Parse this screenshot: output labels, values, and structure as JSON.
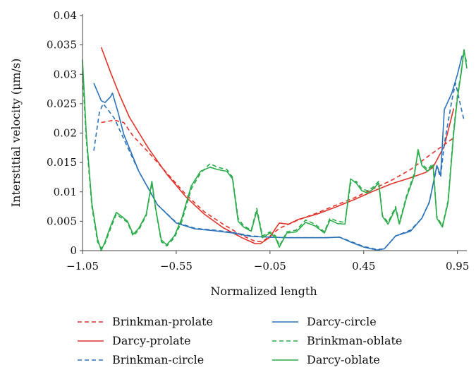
{
  "chart_data": {
    "type": "line",
    "title": "",
    "xlabel": "Normalized length",
    "ylabel": "Interstitial velocity (μm/s)",
    "xlim": [
      -1.05,
      1.0
    ],
    "ylim": [
      0,
      0.04
    ],
    "x_ticks": [
      "−1.05",
      "−0.55",
      "−0.05",
      "0.45",
      "0.95"
    ],
    "x_tick_values": [
      -1.05,
      -0.55,
      -0.05,
      0.45,
      0.95
    ],
    "y_ticks": [
      "0",
      "0.005",
      "0.01",
      "0.015",
      "0.02",
      "0.025",
      "0.03",
      "0.035",
      "0.04"
    ],
    "y_tick_values": [
      0,
      0.005,
      0.01,
      0.015,
      0.02,
      0.025,
      0.03,
      0.035,
      0.04
    ],
    "grid": false,
    "legend_position": "bottom",
    "series": [
      {
        "name": "Brinkman-prolate",
        "color": "#e0332a",
        "dash": true,
        "points": [
          [
            -0.95,
            0.0218
          ],
          [
            -0.88,
            0.0222
          ],
          [
            -0.83,
            0.0218
          ],
          [
            -0.78,
            0.0195
          ],
          [
            -0.7,
            0.0168
          ],
          [
            -0.6,
            0.0132
          ],
          [
            -0.5,
            0.0096
          ],
          [
            -0.4,
            0.0066
          ],
          [
            -0.3,
            0.0045
          ],
          [
            -0.2,
            0.0026
          ],
          [
            -0.13,
            0.0016
          ],
          [
            -0.09,
            0.0015
          ],
          [
            -0.05,
            0.0025
          ],
          [
            0.0,
            0.0038
          ],
          [
            0.1,
            0.0052
          ],
          [
            0.2,
            0.0064
          ],
          [
            0.3,
            0.0077
          ],
          [
            0.4,
            0.009
          ],
          [
            0.5,
            0.0105
          ],
          [
            0.6,
            0.012
          ],
          [
            0.7,
            0.0138
          ],
          [
            0.8,
            0.0162
          ],
          [
            0.87,
            0.0178
          ],
          [
            0.93,
            0.0192
          ]
        ]
      },
      {
        "name": "Darcy-prolate",
        "color": "#e0332a",
        "dash": false,
        "points": [
          [
            -0.95,
            0.0346
          ],
          [
            -0.9,
            0.0303
          ],
          [
            -0.85,
            0.0263
          ],
          [
            -0.8,
            0.0227
          ],
          [
            -0.7,
            0.0175
          ],
          [
            -0.6,
            0.013
          ],
          [
            -0.5,
            0.0092
          ],
          [
            -0.4,
            0.0062
          ],
          [
            -0.3,
            0.0039
          ],
          [
            -0.2,
            0.0022
          ],
          [
            -0.13,
            0.0012
          ],
          [
            -0.1,
            0.0012
          ],
          [
            -0.05,
            0.0023
          ],
          [
            -0.02,
            0.0038
          ],
          [
            0.0,
            0.0047
          ],
          [
            0.05,
            0.0045
          ],
          [
            0.1,
            0.0053
          ],
          [
            0.2,
            0.0062
          ],
          [
            0.3,
            0.0074
          ],
          [
            0.4,
            0.0087
          ],
          [
            0.5,
            0.0101
          ],
          [
            0.6,
            0.0114
          ],
          [
            0.7,
            0.0124
          ],
          [
            0.78,
            0.0133
          ],
          [
            0.82,
            0.0142
          ],
          [
            0.88,
            0.0178
          ],
          [
            0.93,
            0.0242
          ]
        ]
      },
      {
        "name": "Brinkman-circle",
        "color": "#2c72b9",
        "dash": true,
        "points": [
          [
            -0.99,
            0.017
          ],
          [
            -0.96,
            0.0235
          ],
          [
            -0.94,
            0.025
          ],
          [
            -0.91,
            0.0238
          ],
          [
            -0.88,
            0.0225
          ],
          [
            -0.83,
            0.019
          ],
          [
            -0.75,
            0.0135
          ],
          [
            -0.65,
            0.0078
          ],
          [
            -0.55,
            0.0048
          ],
          [
            -0.45,
            0.0038
          ],
          [
            -0.35,
            0.0035
          ],
          [
            -0.25,
            0.0031
          ],
          [
            -0.15,
            0.0025
          ],
          [
            -0.05,
            0.0023
          ],
          [
            0.05,
            0.0022
          ],
          [
            0.15,
            0.0022
          ],
          [
            0.25,
            0.0022
          ],
          [
            0.32,
            0.0023
          ],
          [
            0.37,
            0.0017
          ],
          [
            0.45,
            0.0007
          ],
          [
            0.52,
            0.0002
          ],
          [
            0.56,
            0.0003
          ],
          [
            0.62,
            0.0025
          ],
          [
            0.7,
            0.0035
          ],
          [
            0.76,
            0.0055
          ],
          [
            0.8,
            0.0083
          ],
          [
            0.84,
            0.0142
          ],
          [
            0.86,
            0.0125
          ],
          [
            0.88,
            0.0182
          ],
          [
            0.92,
            0.0255
          ],
          [
            0.94,
            0.0285
          ],
          [
            0.97,
            0.0242
          ],
          [
            0.985,
            0.0222
          ]
        ]
      },
      {
        "name": "Darcy-circle",
        "color": "#2c72b9",
        "dash": false,
        "points": [
          [
            -0.99,
            0.0285
          ],
          [
            -0.95,
            0.0255
          ],
          [
            -0.93,
            0.0252
          ],
          [
            -0.9,
            0.0262
          ],
          [
            -0.89,
            0.0268
          ],
          [
            -0.86,
            0.0235
          ],
          [
            -0.83,
            0.0198
          ],
          [
            -0.75,
            0.0135
          ],
          [
            -0.65,
            0.0078
          ],
          [
            -0.55,
            0.0047
          ],
          [
            -0.45,
            0.0037
          ],
          [
            -0.35,
            0.0034
          ],
          [
            -0.25,
            0.003
          ],
          [
            -0.15,
            0.0024
          ],
          [
            -0.05,
            0.0023
          ],
          [
            0.05,
            0.0022
          ],
          [
            0.15,
            0.0022
          ],
          [
            0.25,
            0.0022
          ],
          [
            0.32,
            0.0023
          ],
          [
            0.37,
            0.0016
          ],
          [
            0.45,
            0.0006
          ],
          [
            0.52,
            0.0001
          ],
          [
            0.56,
            0.0003
          ],
          [
            0.62,
            0.0025
          ],
          [
            0.7,
            0.0033
          ],
          [
            0.76,
            0.0055
          ],
          [
            0.8,
            0.0082
          ],
          [
            0.84,
            0.0145
          ],
          [
            0.86,
            0.0128
          ],
          [
            0.88,
            0.024
          ],
          [
            0.92,
            0.0268
          ],
          [
            0.95,
            0.03
          ],
          [
            0.975,
            0.0332
          ]
        ]
      },
      {
        "name": "Brinkman-oblate",
        "color": "#2bab4a",
        "dash": true,
        "points": [
          [
            -1.05,
            0.0305
          ],
          [
            -1.03,
            0.019
          ],
          [
            -1.0,
            0.0075
          ],
          [
            -0.97,
            0.0015
          ],
          [
            -0.95,
            0.0004
          ],
          [
            -0.93,
            0.0012
          ],
          [
            -0.9,
            0.0038
          ],
          [
            -0.87,
            0.0062
          ],
          [
            -0.84,
            0.0055
          ],
          [
            -0.81,
            0.0048
          ],
          [
            -0.78,
            0.0025
          ],
          [
            -0.75,
            0.0035
          ],
          [
            -0.71,
            0.006
          ],
          [
            -0.68,
            0.0115
          ],
          [
            -0.66,
            0.007
          ],
          [
            -0.63,
            0.0015
          ],
          [
            -0.6,
            0.0008
          ],
          [
            -0.56,
            0.0022
          ],
          [
            -0.52,
            0.005
          ],
          [
            -0.47,
            0.0105
          ],
          [
            -0.42,
            0.0132
          ],
          [
            -0.37,
            0.0148
          ],
          [
            -0.33,
            0.0142
          ],
          [
            -0.28,
            0.0138
          ],
          [
            -0.25,
            0.0125
          ],
          [
            -0.22,
            0.0055
          ],
          [
            -0.19,
            0.0042
          ],
          [
            -0.15,
            0.0035
          ],
          [
            -0.12,
            0.0072
          ],
          [
            -0.09,
            0.0025
          ],
          [
            -0.05,
            0.0032
          ],
          [
            -0.02,
            0.0025
          ],
          [
            0.0,
            0.0008
          ],
          [
            0.04,
            0.0032
          ],
          [
            0.09,
            0.0035
          ],
          [
            0.14,
            0.0052
          ],
          [
            0.19,
            0.0045
          ],
          [
            0.24,
            0.0032
          ],
          [
            0.27,
            0.0055
          ],
          [
            0.31,
            0.005
          ],
          [
            0.35,
            0.0048
          ],
          [
            0.38,
            0.0115
          ],
          [
            0.41,
            0.0118
          ],
          [
            0.44,
            0.0105
          ],
          [
            0.47,
            0.0102
          ],
          [
            0.5,
            0.0108
          ],
          [
            0.53,
            0.0118
          ],
          [
            0.55,
            0.006
          ],
          [
            0.58,
            0.0048
          ],
          [
            0.62,
            0.0075
          ],
          [
            0.64,
            0.0048
          ],
          [
            0.68,
            0.0095
          ],
          [
            0.72,
            0.0132
          ],
          [
            0.74,
            0.0168
          ],
          [
            0.76,
            0.0148
          ],
          [
            0.79,
            0.0138
          ],
          [
            0.82,
            0.0148
          ],
          [
            0.84,
            0.0058
          ],
          [
            0.87,
            0.0042
          ],
          [
            0.9,
            0.0085
          ],
          [
            0.93,
            0.0205
          ],
          [
            0.95,
            0.0265
          ],
          [
            0.97,
            0.0305
          ],
          [
            0.985,
            0.034
          ],
          [
            1.0,
            0.0318
          ]
        ]
      },
      {
        "name": "Darcy-oblate",
        "color": "#2bab4a",
        "dash": false,
        "points": [
          [
            -1.05,
            0.0325
          ],
          [
            -1.03,
            0.02
          ],
          [
            -1.0,
            0.008
          ],
          [
            -0.97,
            0.002
          ],
          [
            -0.95,
            0.0
          ],
          [
            -0.93,
            0.0015
          ],
          [
            -0.9,
            0.0042
          ],
          [
            -0.87,
            0.0065
          ],
          [
            -0.84,
            0.0058
          ],
          [
            -0.81,
            0.005
          ],
          [
            -0.78,
            0.0028
          ],
          [
            -0.75,
            0.0038
          ],
          [
            -0.71,
            0.0062
          ],
          [
            -0.68,
            0.0118
          ],
          [
            -0.66,
            0.0072
          ],
          [
            -0.63,
            0.0018
          ],
          [
            -0.6,
            0.001
          ],
          [
            -0.56,
            0.0025
          ],
          [
            -0.52,
            0.0055
          ],
          [
            -0.47,
            0.011
          ],
          [
            -0.42,
            0.0135
          ],
          [
            -0.37,
            0.0142
          ],
          [
            -0.33,
            0.0138
          ],
          [
            -0.28,
            0.0135
          ],
          [
            -0.25,
            0.0122
          ],
          [
            -0.22,
            0.005
          ],
          [
            -0.19,
            0.004
          ],
          [
            -0.15,
            0.0033
          ],
          [
            -0.12,
            0.0068
          ],
          [
            -0.09,
            0.0022
          ],
          [
            -0.05,
            0.003
          ],
          [
            -0.02,
            0.0022
          ],
          [
            0.0,
            0.0006
          ],
          [
            0.04,
            0.003
          ],
          [
            0.09,
            0.0032
          ],
          [
            0.14,
            0.0048
          ],
          [
            0.19,
            0.0042
          ],
          [
            0.24,
            0.003
          ],
          [
            0.27,
            0.0052
          ],
          [
            0.31,
            0.0046
          ],
          [
            0.35,
            0.0045
          ],
          [
            0.38,
            0.0122
          ],
          [
            0.41,
            0.0115
          ],
          [
            0.44,
            0.0102
          ],
          [
            0.47,
            0.0098
          ],
          [
            0.5,
            0.0105
          ],
          [
            0.53,
            0.0115
          ],
          [
            0.55,
            0.0058
          ],
          [
            0.58,
            0.0045
          ],
          [
            0.62,
            0.0072
          ],
          [
            0.64,
            0.0045
          ],
          [
            0.68,
            0.0092
          ],
          [
            0.72,
            0.0128
          ],
          [
            0.74,
            0.0172
          ],
          [
            0.76,
            0.0145
          ],
          [
            0.79,
            0.0135
          ],
          [
            0.82,
            0.0145
          ],
          [
            0.84,
            0.0055
          ],
          [
            0.87,
            0.004
          ],
          [
            0.9,
            0.0082
          ],
          [
            0.93,
            0.02
          ],
          [
            0.95,
            0.026
          ],
          [
            0.97,
            0.0302
          ],
          [
            0.985,
            0.0342
          ],
          [
            1.0,
            0.031
          ]
        ]
      }
    ]
  }
}
